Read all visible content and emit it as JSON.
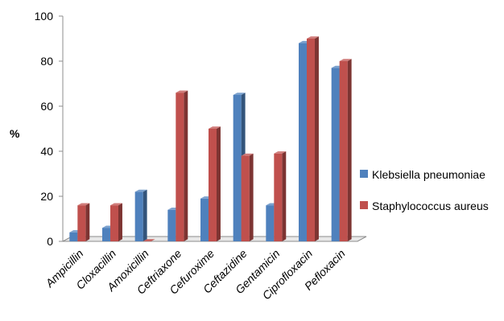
{
  "chart_data": {
    "type": "bar",
    "title": "",
    "xlabel": "",
    "ylabel": "%",
    "ylim": [
      0,
      100
    ],
    "yticks": [
      0,
      20,
      40,
      60,
      80,
      100
    ],
    "grid": false,
    "legend_position": "right",
    "categories": [
      "Ampicillin",
      "Cloxacillin",
      "Amoxicillin",
      "Ceftriaxone",
      "Cefuroxime",
      "Ceftazidine",
      "Gentamicin",
      "Ciprofloxacin",
      "Pefloxacin"
    ],
    "series": [
      {
        "name": "Klebsiella pneumoniae",
        "color": "#4F81BD",
        "values": [
          4,
          6,
          22,
          14,
          19,
          65,
          16,
          88,
          77
        ]
      },
      {
        "name": "Staphylococcus aureus",
        "color": "#C0504D",
        "values": [
          16,
          16,
          0,
          66,
          50,
          38,
          39,
          90,
          80
        ]
      }
    ]
  }
}
